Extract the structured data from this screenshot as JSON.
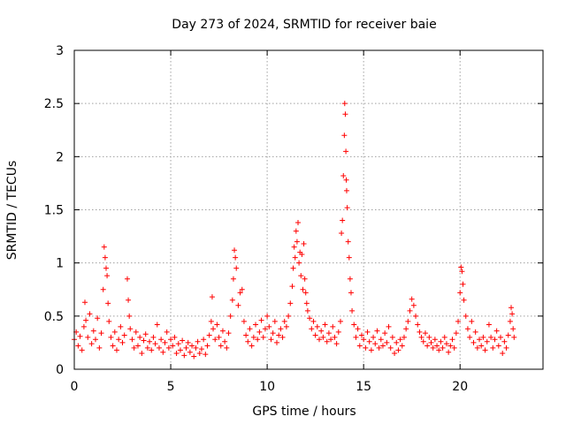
{
  "chart_data": {
    "type": "scatter",
    "title": "Day 273 of 2024, SRMTID for receiver baie",
    "xlabel": "GPS time / hours",
    "ylabel": "SRMTID / TECUs",
    "xlim": [
      0,
      24.3
    ],
    "ylim": [
      0,
      3
    ],
    "xticks": [
      0,
      5,
      10,
      15,
      20
    ],
    "xtick_labels": [
      "0",
      "5",
      "10",
      "15",
      "20"
    ],
    "yticks": [
      0,
      0.5,
      1,
      1.5,
      2,
      2.5,
      3
    ],
    "ytick_labels": [
      "0",
      "0.5",
      "1",
      "1.5",
      "2",
      "2.5",
      "3"
    ],
    "grid": true,
    "marker": "+",
    "color": "#ff0000",
    "series": [
      {
        "name": "SRMTID",
        "points": [
          [
            0.0,
            0.28
          ],
          [
            0.1,
            0.35
          ],
          [
            0.2,
            0.22
          ],
          [
            0.3,
            0.31
          ],
          [
            0.4,
            0.18
          ],
          [
            0.5,
            0.4
          ],
          [
            0.55,
            0.63
          ],
          [
            0.6,
            0.46
          ],
          [
            0.7,
            0.3
          ],
          [
            0.8,
            0.52
          ],
          [
            0.9,
            0.24
          ],
          [
            1.0,
            0.36
          ],
          [
            1.1,
            0.28
          ],
          [
            1.2,
            0.48
          ],
          [
            1.3,
            0.2
          ],
          [
            1.4,
            0.34
          ],
          [
            1.5,
            0.75
          ],
          [
            1.55,
            1.15
          ],
          [
            1.6,
            1.05
          ],
          [
            1.65,
            0.95
          ],
          [
            1.7,
            0.88
          ],
          [
            1.75,
            0.62
          ],
          [
            1.8,
            0.45
          ],
          [
            1.9,
            0.3
          ],
          [
            2.0,
            0.22
          ],
          [
            2.1,
            0.35
          ],
          [
            2.2,
            0.18
          ],
          [
            2.3,
            0.28
          ],
          [
            2.4,
            0.4
          ],
          [
            2.5,
            0.25
          ],
          [
            2.6,
            0.32
          ],
          [
            2.75,
            0.85
          ],
          [
            2.8,
            0.65
          ],
          [
            2.85,
            0.5
          ],
          [
            2.9,
            0.38
          ],
          [
            3.0,
            0.28
          ],
          [
            3.1,
            0.2
          ],
          [
            3.2,
            0.35
          ],
          [
            3.3,
            0.22
          ],
          [
            3.4,
            0.3
          ],
          [
            3.5,
            0.15
          ],
          [
            3.6,
            0.27
          ],
          [
            3.7,
            0.33
          ],
          [
            3.8,
            0.2
          ],
          [
            3.9,
            0.26
          ],
          [
            4.0,
            0.18
          ],
          [
            4.1,
            0.3
          ],
          [
            4.2,
            0.24
          ],
          [
            4.3,
            0.42
          ],
          [
            4.4,
            0.2
          ],
          [
            4.5,
            0.28
          ],
          [
            4.6,
            0.16
          ],
          [
            4.7,
            0.25
          ],
          [
            4.8,
            0.35
          ],
          [
            4.9,
            0.2
          ],
          [
            5.0,
            0.28
          ],
          [
            5.1,
            0.22
          ],
          [
            5.2,
            0.3
          ],
          [
            5.3,
            0.15
          ],
          [
            5.4,
            0.24
          ],
          [
            5.5,
            0.18
          ],
          [
            5.6,
            0.27
          ],
          [
            5.7,
            0.13
          ],
          [
            5.8,
            0.2
          ],
          [
            5.9,
            0.25
          ],
          [
            6.0,
            0.16
          ],
          [
            6.1,
            0.22
          ],
          [
            6.2,
            0.12
          ],
          [
            6.3,
            0.2
          ],
          [
            6.4,
            0.26
          ],
          [
            6.5,
            0.15
          ],
          [
            6.6,
            0.19
          ],
          [
            6.7,
            0.28
          ],
          [
            6.8,
            0.14
          ],
          [
            6.9,
            0.22
          ],
          [
            7.0,
            0.32
          ],
          [
            7.1,
            0.45
          ],
          [
            7.15,
            0.68
          ],
          [
            7.2,
            0.38
          ],
          [
            7.3,
            0.28
          ],
          [
            7.4,
            0.42
          ],
          [
            7.5,
            0.3
          ],
          [
            7.6,
            0.22
          ],
          [
            7.7,
            0.36
          ],
          [
            7.8,
            0.26
          ],
          [
            7.9,
            0.2
          ],
          [
            8.0,
            0.34
          ],
          [
            8.1,
            0.5
          ],
          [
            8.2,
            0.65
          ],
          [
            8.25,
            0.85
          ],
          [
            8.3,
            1.12
          ],
          [
            8.35,
            1.05
          ],
          [
            8.4,
            0.95
          ],
          [
            8.5,
            0.6
          ],
          [
            8.6,
            0.72
          ],
          [
            8.7,
            0.75
          ],
          [
            8.8,
            0.45
          ],
          [
            8.9,
            0.32
          ],
          [
            9.0,
            0.26
          ],
          [
            9.1,
            0.38
          ],
          [
            9.2,
            0.22
          ],
          [
            9.3,
            0.3
          ],
          [
            9.4,
            0.42
          ],
          [
            9.5,
            0.28
          ],
          [
            9.6,
            0.35
          ],
          [
            9.7,
            0.46
          ],
          [
            9.8,
            0.3
          ],
          [
            9.9,
            0.38
          ],
          [
            10.0,
            0.5
          ],
          [
            10.1,
            0.4
          ],
          [
            10.2,
            0.28
          ],
          [
            10.3,
            0.34
          ],
          [
            10.4,
            0.45
          ],
          [
            10.5,
            0.25
          ],
          [
            10.6,
            0.32
          ],
          [
            10.7,
            0.38
          ],
          [
            10.8,
            0.3
          ],
          [
            10.9,
            0.45
          ],
          [
            11.0,
            0.4
          ],
          [
            11.1,
            0.5
          ],
          [
            11.2,
            0.62
          ],
          [
            11.3,
            0.78
          ],
          [
            11.35,
            0.95
          ],
          [
            11.4,
            1.15
          ],
          [
            11.45,
            1.05
          ],
          [
            11.5,
            1.3
          ],
          [
            11.55,
            1.2
          ],
          [
            11.6,
            1.38
          ],
          [
            11.65,
            1.0
          ],
          [
            11.7,
            1.1
          ],
          [
            11.75,
            0.88
          ],
          [
            11.8,
            1.08
          ],
          [
            11.85,
            0.75
          ],
          [
            11.9,
            1.18
          ],
          [
            11.95,
            0.85
          ],
          [
            12.0,
            0.72
          ],
          [
            12.05,
            0.62
          ],
          [
            12.1,
            0.55
          ],
          [
            12.2,
            0.48
          ],
          [
            12.3,
            0.38
          ],
          [
            12.4,
            0.45
          ],
          [
            12.5,
            0.32
          ],
          [
            12.6,
            0.4
          ],
          [
            12.7,
            0.28
          ],
          [
            12.8,
            0.36
          ],
          [
            12.9,
            0.3
          ],
          [
            13.0,
            0.42
          ],
          [
            13.1,
            0.26
          ],
          [
            13.2,
            0.34
          ],
          [
            13.3,
            0.28
          ],
          [
            13.4,
            0.4
          ],
          [
            13.5,
            0.3
          ],
          [
            13.6,
            0.24
          ],
          [
            13.7,
            0.35
          ],
          [
            13.8,
            0.45
          ],
          [
            13.85,
            1.28
          ],
          [
            13.9,
            1.4
          ],
          [
            13.95,
            1.82
          ],
          [
            14.0,
            2.2
          ],
          [
            14.02,
            2.5
          ],
          [
            14.05,
            2.4
          ],
          [
            14.08,
            2.05
          ],
          [
            14.1,
            1.78
          ],
          [
            14.12,
            1.68
          ],
          [
            14.15,
            1.52
          ],
          [
            14.2,
            1.2
          ],
          [
            14.25,
            1.05
          ],
          [
            14.3,
            0.85
          ],
          [
            14.35,
            0.72
          ],
          [
            14.4,
            0.55
          ],
          [
            14.5,
            0.42
          ],
          [
            14.6,
            0.3
          ],
          [
            14.7,
            0.38
          ],
          [
            14.8,
            0.22
          ],
          [
            14.9,
            0.32
          ],
          [
            15.0,
            0.28
          ],
          [
            15.1,
            0.2
          ],
          [
            15.2,
            0.35
          ],
          [
            15.3,
            0.26
          ],
          [
            15.4,
            0.18
          ],
          [
            15.5,
            0.3
          ],
          [
            15.6,
            0.24
          ],
          [
            15.7,
            0.36
          ],
          [
            15.8,
            0.2
          ],
          [
            15.9,
            0.28
          ],
          [
            16.0,
            0.22
          ],
          [
            16.1,
            0.34
          ],
          [
            16.2,
            0.25
          ],
          [
            16.3,
            0.4
          ],
          [
            16.4,
            0.2
          ],
          [
            16.5,
            0.3
          ],
          [
            16.6,
            0.15
          ],
          [
            16.7,
            0.25
          ],
          [
            16.8,
            0.18
          ],
          [
            16.9,
            0.28
          ],
          [
            17.0,
            0.22
          ],
          [
            17.1,
            0.3
          ],
          [
            17.2,
            0.38
          ],
          [
            17.3,
            0.45
          ],
          [
            17.4,
            0.55
          ],
          [
            17.5,
            0.66
          ],
          [
            17.6,
            0.6
          ],
          [
            17.7,
            0.5
          ],
          [
            17.8,
            0.42
          ],
          [
            17.9,
            0.35
          ],
          [
            18.0,
            0.3
          ],
          [
            18.1,
            0.26
          ],
          [
            18.2,
            0.34
          ],
          [
            18.3,
            0.22
          ],
          [
            18.4,
            0.3
          ],
          [
            18.5,
            0.25
          ],
          [
            18.6,
            0.2
          ],
          [
            18.7,
            0.28
          ],
          [
            18.8,
            0.22
          ],
          [
            18.9,
            0.18
          ],
          [
            19.0,
            0.26
          ],
          [
            19.1,
            0.2
          ],
          [
            19.2,
            0.3
          ],
          [
            19.3,
            0.24
          ],
          [
            19.4,
            0.16
          ],
          [
            19.5,
            0.22
          ],
          [
            19.6,
            0.28
          ],
          [
            19.7,
            0.2
          ],
          [
            19.8,
            0.34
          ],
          [
            19.9,
            0.45
          ],
          [
            20.0,
            0.72
          ],
          [
            20.05,
            0.96
          ],
          [
            20.1,
            0.92
          ],
          [
            20.15,
            0.8
          ],
          [
            20.2,
            0.65
          ],
          [
            20.3,
            0.5
          ],
          [
            20.4,
            0.38
          ],
          [
            20.5,
            0.3
          ],
          [
            20.6,
            0.45
          ],
          [
            20.7,
            0.25
          ],
          [
            20.8,
            0.35
          ],
          [
            20.9,
            0.2
          ],
          [
            21.0,
            0.28
          ],
          [
            21.1,
            0.22
          ],
          [
            21.2,
            0.3
          ],
          [
            21.3,
            0.18
          ],
          [
            21.4,
            0.26
          ],
          [
            21.5,
            0.42
          ],
          [
            21.6,
            0.3
          ],
          [
            21.7,
            0.2
          ],
          [
            21.8,
            0.28
          ],
          [
            21.9,
            0.36
          ],
          [
            22.0,
            0.22
          ],
          [
            22.1,
            0.3
          ],
          [
            22.2,
            0.15
          ],
          [
            22.3,
            0.26
          ],
          [
            22.4,
            0.2
          ],
          [
            22.5,
            0.32
          ],
          [
            22.6,
            0.45
          ],
          [
            22.65,
            0.58
          ],
          [
            22.7,
            0.52
          ],
          [
            22.75,
            0.38
          ],
          [
            22.8,
            0.3
          ]
        ]
      }
    ]
  }
}
